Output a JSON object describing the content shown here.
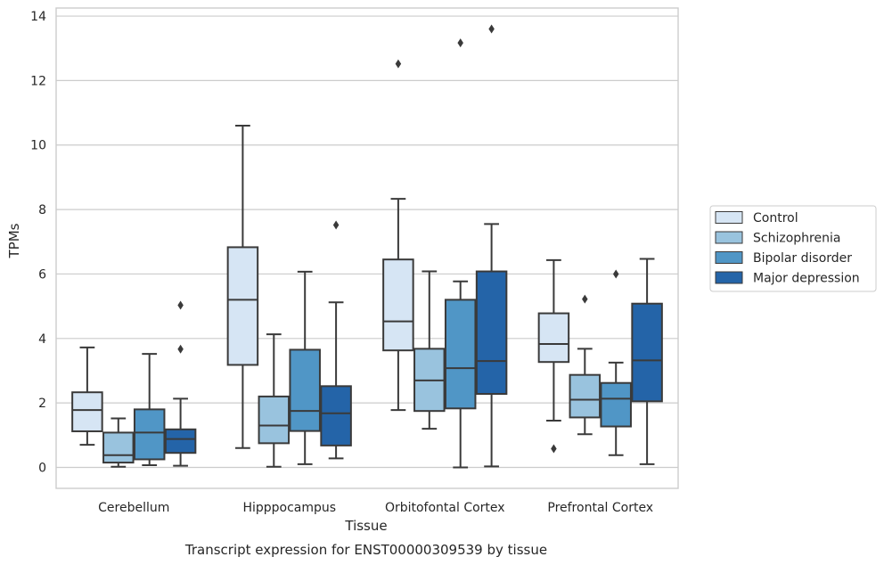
{
  "caption": "Transcript expression for ENST00000309539 by tissue",
  "chart_data": {
    "type": "box",
    "xlabel": "Tissue",
    "ylabel": "TPMs",
    "ylim": [
      -0.65,
      14.25
    ],
    "yticks": [
      0,
      2,
      4,
      6,
      8,
      10,
      12,
      14
    ],
    "grid": "horizontal",
    "legend_position": "right",
    "categories": [
      "Cerebellum",
      "Hipppocampus",
      "Orbitofontal Cortex",
      "Prefrontal Cortex"
    ],
    "series": [
      {
        "name": "Control",
        "color": "#d6e5f4",
        "boxes": [
          {
            "whislo": 0.7,
            "q1": 1.12,
            "med": 1.78,
            "q3": 2.33,
            "whishi": 3.72,
            "fliers": []
          },
          {
            "whislo": 0.6,
            "q1": 3.18,
            "med": 5.2,
            "q3": 6.83,
            "whishi": 10.6,
            "fliers": []
          },
          {
            "whislo": 1.78,
            "q1": 3.63,
            "med": 4.53,
            "q3": 6.45,
            "whishi": 8.33,
            "fliers": [
              12.52
            ]
          },
          {
            "whislo": 1.45,
            "q1": 3.27,
            "med": 3.83,
            "q3": 4.78,
            "whishi": 6.43,
            "fliers": [
              0.58
            ]
          }
        ]
      },
      {
        "name": "Schizophrenia",
        "color": "#99c3de",
        "boxes": [
          {
            "whislo": 0.02,
            "q1": 0.15,
            "med": 0.38,
            "q3": 1.08,
            "whishi": 1.52,
            "fliers": []
          },
          {
            "whislo": 0.02,
            "q1": 0.75,
            "med": 1.3,
            "q3": 2.2,
            "whishi": 4.13,
            "fliers": []
          },
          {
            "whislo": 1.2,
            "q1": 1.75,
            "med": 2.7,
            "q3": 3.68,
            "whishi": 6.08,
            "fliers": []
          },
          {
            "whislo": 1.03,
            "q1": 1.55,
            "med": 2.1,
            "q3": 2.87,
            "whishi": 3.68,
            "fliers": [
              5.22
            ]
          }
        ]
      },
      {
        "name": "Bipolar disorder",
        "color": "#5096c6",
        "boxes": [
          {
            "whislo": 0.07,
            "q1": 0.25,
            "med": 1.08,
            "q3": 1.8,
            "whishi": 3.52,
            "fliers": []
          },
          {
            "whislo": 0.1,
            "q1": 1.13,
            "med": 1.75,
            "q3": 3.65,
            "whishi": 6.07,
            "fliers": []
          },
          {
            "whislo": 0.0,
            "q1": 1.83,
            "med": 3.08,
            "q3": 5.2,
            "whishi": 5.77,
            "fliers": [
              13.17
            ]
          },
          {
            "whislo": 0.38,
            "q1": 1.27,
            "med": 2.13,
            "q3": 2.62,
            "whishi": 3.25,
            "fliers": [
              6.0
            ]
          }
        ]
      },
      {
        "name": "Major depression",
        "color": "#2464a8",
        "boxes": [
          {
            "whislo": 0.05,
            "q1": 0.45,
            "med": 0.88,
            "q3": 1.18,
            "whishi": 2.13,
            "fliers": [
              3.67,
              5.03
            ]
          },
          {
            "whislo": 0.28,
            "q1": 0.68,
            "med": 1.68,
            "q3": 2.52,
            "whishi": 5.12,
            "fliers": [
              7.52
            ]
          },
          {
            "whislo": 0.03,
            "q1": 2.28,
            "med": 3.3,
            "q3": 6.08,
            "whishi": 7.55,
            "fliers": [
              13.6
            ]
          },
          {
            "whislo": 0.1,
            "q1": 2.05,
            "med": 3.32,
            "q3": 5.08,
            "whishi": 6.47,
            "fliers": []
          }
        ]
      }
    ]
  }
}
